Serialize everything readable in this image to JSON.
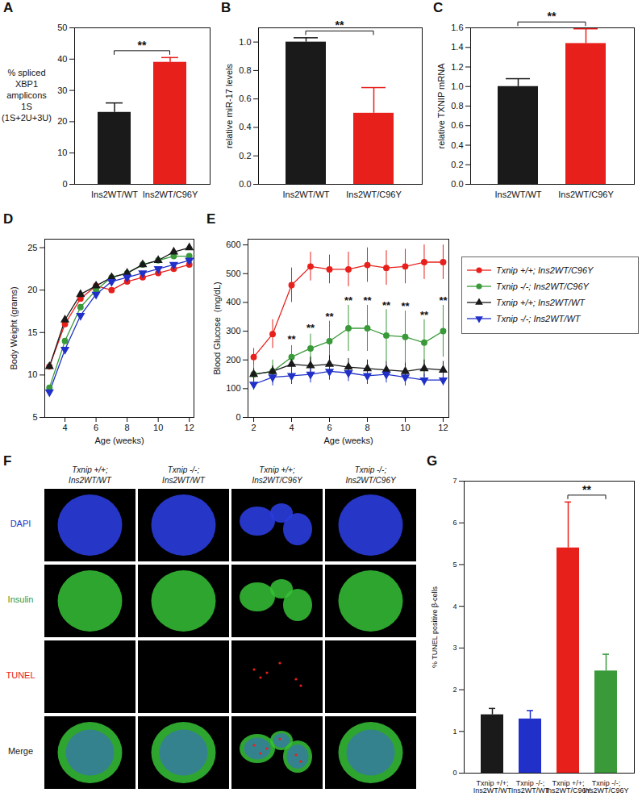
{
  "chart_data": [
    {
      "panel": "A",
      "type": "bar",
      "categories": [
        "Ins2WT/WT",
        "Ins2WT/C96Y"
      ],
      "values": [
        23,
        39
      ],
      "errors": [
        3,
        1.5
      ],
      "colors": [
        "#1a1a1a",
        "#e8201c"
      ],
      "ylabel": [
        "% spliced",
        "XBP1",
        "amplicons",
        "1S",
        "(1S+2U+3U)"
      ],
      "ylim": [
        0,
        50
      ],
      "yticks": [
        0,
        10,
        20,
        30,
        40,
        50
      ],
      "significance": [
        {
          "from": 0,
          "to": 1,
          "label": "**"
        }
      ]
    },
    {
      "panel": "B",
      "type": "bar",
      "categories": [
        "Ins2WT/WT",
        "Ins2WT/C96Y"
      ],
      "values": [
        1.0,
        0.5
      ],
      "errors": [
        0.03,
        0.18
      ],
      "colors": [
        "#1a1a1a",
        "#e8201c"
      ],
      "ylabel": "relative miR-17 levels",
      "ylim": [
        0,
        1.1
      ],
      "yticks": [
        {
          "value": 0,
          "label": "0.0"
        },
        0.2,
        0.4,
        0.6,
        0.8,
        {
          "value": 1,
          "label": "1.0"
        }
      ],
      "significance": [
        {
          "from": 0,
          "to": 1,
          "label": "**"
        }
      ]
    },
    {
      "panel": "C",
      "type": "bar",
      "categories": [
        "Ins2WT/WT",
        "Ins2WT/C96Y"
      ],
      "values": [
        1.0,
        1.44
      ],
      "errors": [
        0.08,
        0.15
      ],
      "colors": [
        "#1a1a1a",
        "#e8201c"
      ],
      "ylabel": "relative TXNIP mRNA",
      "ylim": [
        0,
        1.6
      ],
      "yticks": [
        {
          "value": 0,
          "label": "0.0"
        },
        0.2,
        0.4,
        0.6,
        0.8,
        {
          "value": 1,
          "label": "1.0"
        },
        1.2,
        1.4,
        1.6
      ],
      "significance": [
        {
          "from": 0,
          "to": 1,
          "label": "**"
        }
      ]
    },
    {
      "panel": "D",
      "type": "line",
      "x": [
        3,
        4,
        5,
        6,
        7,
        8,
        9,
        10,
        11,
        12
      ],
      "xlabel": "Age (weeks)",
      "ylabel": "Body Weight (grams)",
      "xlim": [
        2.7,
        12.3
      ],
      "ylim": [
        5,
        26
      ],
      "xticks": [
        4,
        6,
        8,
        10,
        12
      ],
      "yticks": [
        5,
        10,
        15,
        20,
        25
      ],
      "series": [
        {
          "name": "Txnip +/+; Ins2WT/C96Y",
          "color": "#e8201c",
          "marker": "circle",
          "values": [
            11,
            16,
            19,
            20.5,
            20,
            21,
            21.5,
            22,
            22.5,
            23
          ]
        },
        {
          "name": "Txnip -/-; Ins2WT/C96Y",
          "color": "#3a9a3a",
          "marker": "circle",
          "values": [
            8.5,
            14,
            18,
            20,
            21.5,
            22,
            23,
            23.5,
            24,
            24
          ]
        },
        {
          "name": "Txnip +/+; Ins2WT/WT",
          "color": "#1a1a1a",
          "marker": "triangle",
          "values": [
            11,
            16.5,
            19.5,
            20.5,
            21.5,
            22,
            23,
            23.5,
            24.5,
            25
          ]
        },
        {
          "name": "Txnip -/-; Ins2WT/WT",
          "color": "#2030c8",
          "marker": "triangle_down",
          "values": [
            8,
            13,
            17,
            19.5,
            21,
            21.5,
            22,
            22.5,
            23,
            23.5
          ]
        }
      ]
    },
    {
      "panel": "E",
      "type": "line",
      "x": [
        2,
        3,
        4,
        5,
        6,
        7,
        8,
        9,
        10,
        11,
        12
      ],
      "xlabel": "Age (weeks)",
      "ylabel": "Blood Glucose  (mg/dL)",
      "xlim": [
        1.7,
        12.3
      ],
      "ylim": [
        0,
        620
      ],
      "xticks": [
        2,
        4,
        6,
        8,
        10,
        12
      ],
      "yticks": [
        0,
        100,
        200,
        300,
        400,
        500,
        600
      ],
      "legend": "right",
      "series": [
        {
          "name": "Txnip +/+; Ins2WT/C96Y",
          "color": "#e8201c",
          "marker": "circle",
          "values": [
            210,
            290,
            460,
            525,
            515,
            515,
            530,
            520,
            525,
            540,
            540
          ],
          "errors": [
            30,
            50,
            60,
            50,
            50,
            60,
            60,
            60,
            60,
            60,
            60
          ]
        },
        {
          "name": "Txnip -/-; Ins2WT/C96Y",
          "color": "#3a9a3a",
          "marker": "circle",
          "values": [
            150,
            160,
            210,
            240,
            265,
            310,
            310,
            285,
            280,
            260,
            300
          ],
          "errors": [
            30,
            40,
            40,
            50,
            70,
            80,
            80,
            90,
            90,
            80,
            90
          ]
        },
        {
          "name": "Txnip +/+; Ins2WT/WT",
          "color": "#1a1a1a",
          "marker": "triangle",
          "values": [
            150,
            160,
            185,
            180,
            185,
            175,
            170,
            165,
            160,
            170,
            165
          ],
          "errors": [
            20,
            20,
            30,
            30,
            30,
            30,
            30,
            30,
            30,
            30,
            30
          ]
        },
        {
          "name": "Txnip -/-; Ins2WT/WT",
          "color": "#2030c8",
          "marker": "triangle_down",
          "values": [
            115,
            140,
            145,
            150,
            160,
            155,
            145,
            150,
            140,
            130,
            130
          ],
          "errors": [
            20,
            30,
            30,
            30,
            30,
            30,
            30,
            30,
            30,
            20,
            20
          ]
        }
      ],
      "annotations": [
        {
          "text": "**",
          "x": 4,
          "y": 270
        },
        {
          "text": "**",
          "x": 5,
          "y": 310
        },
        {
          "text": "**",
          "x": 6,
          "y": 350
        },
        {
          "text": "**",
          "x": 7,
          "y": 405
        },
        {
          "text": "**",
          "x": 8,
          "y": 405
        },
        {
          "text": "**",
          "x": 9,
          "y": 390
        },
        {
          "text": "**",
          "x": 10,
          "y": 385
        },
        {
          "text": "**",
          "x": 11,
          "y": 355
        },
        {
          "text": "**",
          "x": 12,
          "y": 405
        }
      ]
    },
    {
      "panel": "F",
      "type": "image_grid",
      "columns": [
        "Txnip +/+; Ins2WT/WT",
        "Txnip -/-; Ins2WT/WT",
        "Txnip +/+; Ins2WT/C96Y",
        "Txnip -/-; Ins2WT/C96Y"
      ],
      "rows": [
        "DAPI",
        "Insulin",
        "TUNEL",
        "Merge"
      ],
      "colors": [
        "#2030c8",
        "#3a9a3a",
        "#e8201c",
        "#1a1a1a"
      ]
    },
    {
      "panel": "G",
      "type": "bar",
      "categories": [
        "Txnip +/+; Ins2WT/WT",
        "Txnip -/-; Ins2WT/WT",
        "Txnip +/+; Ins2WT/C96Y",
        "Txnip -/-; Ins2WT/C96Y"
      ],
      "values": [
        1.4,
        1.3,
        5.4,
        2.45
      ],
      "errors": [
        0.15,
        0.2,
        1.1,
        0.4
      ],
      "colors": [
        "#1a1a1a",
        "#2030c8",
        "#e8201c",
        "#3a9a3a"
      ],
      "ylabel": "% TUNEL positive β-cells",
      "ylim": [
        0,
        7
      ],
      "yticks": [
        0,
        1,
        2,
        3,
        4,
        5,
        6,
        7
      ],
      "significance": [
        {
          "from": 2,
          "to": 3,
          "label": "**"
        }
      ]
    }
  ]
}
